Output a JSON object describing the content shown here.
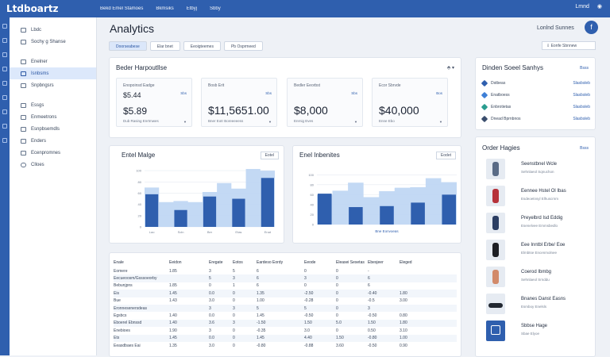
{
  "topbar": {
    "logo": "Ltdboartz",
    "nav": [
      "Bekd Emel Stamoes",
      "Bkmsiks",
      "Etbyj",
      "Sbby"
    ],
    "notify_label": "Lmnd"
  },
  "sidebar": {
    "section1_label": "Lbdc",
    "section2_label": "Sochy g Shanse",
    "items_a": [
      {
        "label": "Enelner",
        "icon": "grid-icon"
      },
      {
        "label": "Isnbsms",
        "icon": "users-icon",
        "active": true
      },
      {
        "label": "Snpbngsrs",
        "icon": "list-icon"
      }
    ],
    "items_b": [
      {
        "label": "Essgs",
        "icon": "doc-icon"
      },
      {
        "label": "Enmeetrons",
        "icon": "chart-icon"
      },
      {
        "label": "Esnpbsemdls",
        "icon": "table-icon"
      },
      {
        "label": "Enders",
        "icon": "box-icon"
      },
      {
        "label": "Ecenpromnes",
        "icon": "gear-icon"
      },
      {
        "label": "Clloes",
        "icon": "cloud-icon"
      }
    ]
  },
  "page": {
    "title": "Analytics",
    "upgrade_label": "Lonlnd Sunnes",
    "avatar_initial": "f",
    "export_label": "Eonfe Sbnnew",
    "tabs": [
      "Doorseabese",
      "Elar bnet",
      "Eeoigteemes",
      "Pb Osprmeed"
    ]
  },
  "kpi_card": {
    "title": "Beder Harpoutllse",
    "menu_glyph": "⬘ ▾"
  },
  "kpis": [
    {
      "label": "Enopoinsd Eadge",
      "value": "$5.44",
      "badge": "Sbs",
      "sub": ""
    },
    {
      "label": "",
      "value": "$5.89",
      "badge": "",
      "sub": "Dub Rasing Enrtmwes"
    },
    {
      "label": "Bosb Erit",
      "value": "$11,5651.00",
      "badge": "Sbs",
      "sub": "Bner Eotr Boreeeeess"
    },
    {
      "label": "Bedler Eeorbst",
      "value": "$8,000",
      "badge": "Sbs",
      "sub": "Enrnig Eves"
    },
    {
      "label": "Ecor Sbrvde",
      "value": "$40,000",
      "badge": "Bos",
      "sub": "Enne Ebo"
    }
  ],
  "chart1": {
    "title": "Entel Malge",
    "button": "Eotel",
    "xticks": [
      "Lao",
      "Scln",
      "Ber",
      "Etas",
      "Enat"
    ]
  },
  "chart2": {
    "title": "Enel Inbenites",
    "button": "Eodet",
    "xlabel": "Bne Eonvoeas"
  },
  "chart_data": [
    {
      "type": "bar",
      "categories": [
        "Lao",
        "",
        "Scln",
        "",
        "Ber",
        "",
        "Etas",
        "",
        "Enat"
      ],
      "series": [
        {
          "values": [
            70,
            44,
            46,
            44,
            62,
            78,
            68,
            103,
            100
          ],
          "color": "#bcd5f3"
        },
        {
          "values": [
            58,
            0,
            30,
            0,
            54,
            0,
            50,
            0,
            87
          ],
          "color": "#2f5fae"
        }
      ],
      "title": "Entel Malge",
      "ylim": [
        0,
        110
      ],
      "yticks": [
        0,
        20,
        40,
        60,
        80,
        100
      ]
    },
    {
      "type": "bar",
      "categories": [
        "",
        "",
        "",
        "",
        "",
        "",
        "",
        "",
        ""
      ],
      "series": [
        {
          "values": [
            60,
            68,
            84,
            55,
            67,
            74,
            75,
            93,
            85
          ],
          "color": "#bcd5f3"
        },
        {
          "values": [
            62,
            0,
            35,
            0,
            37,
            0,
            44,
            0,
            60
          ],
          "color": "#2f5fae"
        }
      ],
      "title": "Enel Inbenites",
      "xlabel": "Bne Eonvoeas",
      "ylim": [
        0,
        110
      ],
      "yticks": [
        0,
        20,
        40,
        60,
        80,
        100
      ]
    }
  ],
  "table": {
    "headers": [
      "Enale",
      "Eeidon",
      "Eregate",
      "Eotos",
      "Eardeso Eordy",
      "Eeode",
      "Eleasei Sesetas",
      "Ebesjeer",
      "Eleged"
    ],
    "rows": [
      [
        "Eomere",
        "1.85",
        "3",
        "5",
        "6",
        "0",
        "0",
        "-",
        ""
      ],
      [
        "Eecueoosm/Gsssoeorby",
        "",
        "5",
        "3",
        "6",
        "3",
        "0",
        "6",
        ""
      ],
      [
        "Bebunjpns",
        "1.85",
        "0",
        "1",
        "6",
        "0",
        "0",
        "6",
        ""
      ],
      [
        "Eis",
        "1.45",
        "0.0",
        "0",
        "1.35",
        "-2.50",
        "0",
        "-0.40",
        "1.80"
      ],
      [
        "Bue",
        "1.43",
        "3.0",
        "0",
        "1.00",
        "-0.28",
        "0",
        "-0.5",
        "3.00"
      ],
      [
        "Eronnesenersdeas",
        "",
        "3",
        "3",
        "5",
        "5",
        "0",
        "3",
        ""
      ],
      [
        "Egsbcs",
        "1.40",
        "0.0",
        "0",
        "1.45",
        "-0.50",
        "0",
        "-0.50",
        "0.80"
      ],
      [
        "Eboerel Ebnssd",
        "1.40",
        "3.6",
        "3",
        "-1.50",
        "1.50",
        "5.0",
        "1.50",
        "1.80"
      ],
      [
        "Enebioes",
        "1.90",
        "3",
        "0",
        "-0.35",
        "3.0",
        "0",
        "0.50",
        "3.10"
      ],
      [
        "Ets",
        "1.45",
        "0.0",
        "0",
        "1.45",
        "4.40",
        "1.50",
        "-0.80",
        "1.00"
      ],
      [
        "Eeasdbaes Eai",
        "1.35",
        "3.0",
        "0",
        "-0.80",
        "-0.88",
        "3.60",
        "-0.50",
        "0.90"
      ]
    ]
  },
  "summary": {
    "title": "Dinden Soeel Sanhys",
    "link": "Bsss",
    "rows": [
      {
        "label": "Dstbeas",
        "value": "Slasbsleb",
        "color": "#2f5fae"
      },
      {
        "label": "Enatboess",
        "value": "Slasbsleb",
        "color": "#3e7fd6"
      },
      {
        "label": "Enbrotietas",
        "value": "Slasbsleb",
        "color": "#2a9d8f"
      },
      {
        "label": "Dnead Bprnbnos",
        "value": "Slasbsleb",
        "color": "#3a4d6d"
      }
    ]
  },
  "orders": {
    "title": "Order Hagies",
    "link": "Bsss",
    "items": [
      {
        "title": "Seenstbnel Wcle",
        "sub": "Sehnlaeol Sqnuchon"
      },
      {
        "title": "Eennee Hstel Ol Ibas",
        "sub": "Esdeoetnsyl Elhuscrnm"
      },
      {
        "title": "Preyelbrd Isd Eddig",
        "sub": "Esenelvee Emmsbedlo"
      },
      {
        "title": "Eee Inntbl Erbe/ Eoe",
        "sub": "Elmbtse Encenmolnee"
      },
      {
        "title": "Coerod Ibmbg",
        "sub": "Sehnlaeol Srnddu"
      },
      {
        "title": "Bnanes Danst Easns",
        "sub": "Esmboy Enelsls"
      },
      {
        "title": "Sbbse Hage",
        "sub": "Sbae Elyoe"
      }
    ]
  }
}
